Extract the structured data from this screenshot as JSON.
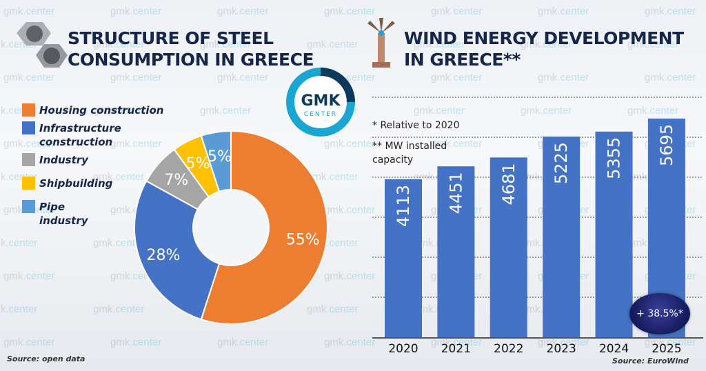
{
  "watermark": "gmk.center",
  "logo": {
    "line1": "GMK",
    "line2": "CENTER",
    "colors": {
      "ring": "#1aa6d2",
      "dark": "#0c3a5c"
    }
  },
  "left_title": [
    "STRUCTURE OF STEEL",
    "CONSUMPTION IN GREECE"
  ],
  "right_title": [
    "WIND ENERGY DEVELOPMENT",
    "IN GREECE**"
  ],
  "left_source": "Source: open data",
  "right_source": "Source: EuroWind",
  "notes": {
    "relative": "* Relative to 2020",
    "mw": "** MW installed capacity"
  },
  "growth_badge": "+ 38.5%*",
  "chart_data": [
    {
      "type": "pie",
      "donut": true,
      "labels": [
        "Housing construction",
        "Infrastructure construction",
        "Industry",
        "Shipbuilding",
        "Pipe industry"
      ],
      "values": [
        55,
        28,
        7,
        5,
        5
      ],
      "data_labels": [
        "55%",
        "28%",
        "7%",
        "5%",
        "5%"
      ],
      "colors": [
        "#ed7d31",
        "#4472c4",
        "#a5a5a5",
        "#ffc000",
        "#5b9bd5"
      ],
      "legend": "left"
    },
    {
      "type": "bar",
      "categories": [
        "2020",
        "2021",
        "2022",
        "2023",
        "2024",
        "2025"
      ],
      "values": [
        4113,
        4451,
        4681,
        5225,
        5355,
        5695
      ],
      "ylim": [
        0,
        6250
      ],
      "grid": true,
      "color": "#4472c4"
    }
  ]
}
